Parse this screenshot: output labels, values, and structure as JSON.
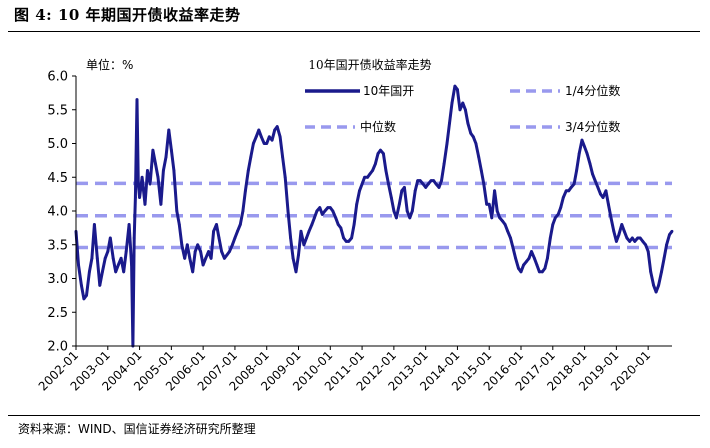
{
  "figure": {
    "label": "图 4:",
    "title": "10 年期国开债收益率走势",
    "source": "资料来源：WIND、国信证券经济研究所整理"
  },
  "chart_data": {
    "type": "line",
    "title": "10年国开债收益率走势",
    "unit_label": "单位：%",
    "ylim": [
      2.0,
      6.0
    ],
    "y_ticks": [
      "2.0",
      "2.5",
      "3.0",
      "3.5",
      "4.0",
      "4.5",
      "5.0",
      "5.5",
      "6.0"
    ],
    "x_ticks": [
      "2002-01",
      "2003-01",
      "2004-01",
      "2005-01",
      "2006-01",
      "2007-01",
      "2008-01",
      "2009-01",
      "2010-01",
      "2011-01",
      "2012-01",
      "2013-01",
      "2014-01",
      "2015-01",
      "2016-01",
      "2017-01",
      "2018-01",
      "2019-01",
      "2020-01"
    ],
    "x_range": [
      2002.0,
      2020.75
    ],
    "legend": {
      "series": "10年国开",
      "q1": "1/4分位数",
      "median": "中位数",
      "q3": "3/4分位数"
    },
    "reference_lines": {
      "q1": 3.46,
      "median": 3.93,
      "q3": 4.41
    },
    "colors": {
      "series": "#1a1a8c",
      "reference": "#9999ee"
    },
    "series": [
      {
        "name": "10年国开",
        "points": [
          [
            2002.0,
            3.7
          ],
          [
            2002.08,
            3.2
          ],
          [
            2002.17,
            2.9
          ],
          [
            2002.25,
            2.7
          ],
          [
            2002.33,
            2.75
          ],
          [
            2002.42,
            3.1
          ],
          [
            2002.5,
            3.3
          ],
          [
            2002.58,
            3.8
          ],
          [
            2002.67,
            3.3
          ],
          [
            2002.75,
            2.9
          ],
          [
            2002.83,
            3.1
          ],
          [
            2002.92,
            3.3
          ],
          [
            2003.0,
            3.4
          ],
          [
            2003.08,
            3.6
          ],
          [
            2003.17,
            3.3
          ],
          [
            2003.25,
            3.1
          ],
          [
            2003.33,
            3.2
          ],
          [
            2003.42,
            3.3
          ],
          [
            2003.5,
            3.1
          ],
          [
            2003.58,
            3.4
          ],
          [
            2003.67,
            3.8
          ],
          [
            2003.75,
            3.2
          ],
          [
            2003.79,
            2.0
          ],
          [
            2003.83,
            3.6
          ],
          [
            2003.87,
            4.2
          ],
          [
            2003.92,
            5.65
          ],
          [
            2003.96,
            4.4
          ],
          [
            2004.0,
            4.2
          ],
          [
            2004.08,
            4.5
          ],
          [
            2004.17,
            4.1
          ],
          [
            2004.25,
            4.6
          ],
          [
            2004.33,
            4.4
          ],
          [
            2004.42,
            4.9
          ],
          [
            2004.5,
            4.7
          ],
          [
            2004.58,
            4.5
          ],
          [
            2004.67,
            4.1
          ],
          [
            2004.75,
            4.6
          ],
          [
            2004.83,
            4.8
          ],
          [
            2004.92,
            5.2
          ],
          [
            2005.0,
            4.9
          ],
          [
            2005.08,
            4.6
          ],
          [
            2005.17,
            4.0
          ],
          [
            2005.25,
            3.8
          ],
          [
            2005.33,
            3.5
          ],
          [
            2005.42,
            3.3
          ],
          [
            2005.5,
            3.5
          ],
          [
            2005.58,
            3.3
          ],
          [
            2005.67,
            3.1
          ],
          [
            2005.75,
            3.4
          ],
          [
            2005.83,
            3.5
          ],
          [
            2005.92,
            3.4
          ],
          [
            2006.0,
            3.2
          ],
          [
            2006.08,
            3.3
          ],
          [
            2006.17,
            3.4
          ],
          [
            2006.25,
            3.3
          ],
          [
            2006.33,
            3.7
          ],
          [
            2006.42,
            3.8
          ],
          [
            2006.5,
            3.6
          ],
          [
            2006.58,
            3.4
          ],
          [
            2006.67,
            3.3
          ],
          [
            2006.75,
            3.35
          ],
          [
            2006.83,
            3.4
          ],
          [
            2006.92,
            3.5
          ],
          [
            2007.0,
            3.6
          ],
          [
            2007.08,
            3.7
          ],
          [
            2007.17,
            3.8
          ],
          [
            2007.25,
            4.0
          ],
          [
            2007.33,
            4.3
          ],
          [
            2007.42,
            4.6
          ],
          [
            2007.5,
            4.8
          ],
          [
            2007.58,
            5.0
          ],
          [
            2007.67,
            5.1
          ],
          [
            2007.75,
            5.2
          ],
          [
            2007.83,
            5.1
          ],
          [
            2007.92,
            5.0
          ],
          [
            2008.0,
            5.0
          ],
          [
            2008.08,
            5.1
          ],
          [
            2008.17,
            5.05
          ],
          [
            2008.25,
            5.2
          ],
          [
            2008.33,
            5.25
          ],
          [
            2008.42,
            5.1
          ],
          [
            2008.5,
            4.8
          ],
          [
            2008.58,
            4.5
          ],
          [
            2008.67,
            4.0
          ],
          [
            2008.75,
            3.6
          ],
          [
            2008.83,
            3.3
          ],
          [
            2008.92,
            3.1
          ],
          [
            2009.0,
            3.35
          ],
          [
            2009.08,
            3.7
          ],
          [
            2009.17,
            3.5
          ],
          [
            2009.25,
            3.6
          ],
          [
            2009.33,
            3.7
          ],
          [
            2009.42,
            3.8
          ],
          [
            2009.5,
            3.9
          ],
          [
            2009.58,
            4.0
          ],
          [
            2009.67,
            4.05
          ],
          [
            2009.75,
            3.95
          ],
          [
            2009.83,
            4.0
          ],
          [
            2009.92,
            4.05
          ],
          [
            2010.0,
            4.05
          ],
          [
            2010.08,
            4.0
          ],
          [
            2010.17,
            3.9
          ],
          [
            2010.25,
            3.8
          ],
          [
            2010.33,
            3.75
          ],
          [
            2010.42,
            3.6
          ],
          [
            2010.5,
            3.55
          ],
          [
            2010.58,
            3.55
          ],
          [
            2010.67,
            3.6
          ],
          [
            2010.75,
            3.8
          ],
          [
            2010.83,
            4.1
          ],
          [
            2010.92,
            4.3
          ],
          [
            2011.0,
            4.4
          ],
          [
            2011.08,
            4.5
          ],
          [
            2011.17,
            4.5
          ],
          [
            2011.25,
            4.55
          ],
          [
            2011.33,
            4.6
          ],
          [
            2011.42,
            4.7
          ],
          [
            2011.5,
            4.85
          ],
          [
            2011.58,
            4.9
          ],
          [
            2011.67,
            4.85
          ],
          [
            2011.75,
            4.6
          ],
          [
            2011.83,
            4.4
          ],
          [
            2011.92,
            4.2
          ],
          [
            2012.0,
            4.0
          ],
          [
            2012.08,
            3.9
          ],
          [
            2012.17,
            4.1
          ],
          [
            2012.25,
            4.3
          ],
          [
            2012.33,
            4.35
          ],
          [
            2012.42,
            4.0
          ],
          [
            2012.5,
            3.9
          ],
          [
            2012.58,
            4.0
          ],
          [
            2012.67,
            4.3
          ],
          [
            2012.75,
            4.45
          ],
          [
            2012.83,
            4.45
          ],
          [
            2012.92,
            4.4
          ],
          [
            2013.0,
            4.35
          ],
          [
            2013.08,
            4.4
          ],
          [
            2013.17,
            4.45
          ],
          [
            2013.25,
            4.45
          ],
          [
            2013.33,
            4.4
          ],
          [
            2013.42,
            4.35
          ],
          [
            2013.5,
            4.45
          ],
          [
            2013.58,
            4.7
          ],
          [
            2013.67,
            5.0
          ],
          [
            2013.75,
            5.3
          ],
          [
            2013.83,
            5.6
          ],
          [
            2013.92,
            5.85
          ],
          [
            2014.0,
            5.8
          ],
          [
            2014.08,
            5.5
          ],
          [
            2014.17,
            5.6
          ],
          [
            2014.25,
            5.5
          ],
          [
            2014.33,
            5.3
          ],
          [
            2014.42,
            5.15
          ],
          [
            2014.5,
            5.1
          ],
          [
            2014.58,
            5.0
          ],
          [
            2014.67,
            4.8
          ],
          [
            2014.75,
            4.6
          ],
          [
            2014.83,
            4.4
          ],
          [
            2014.92,
            4.1
          ],
          [
            2015.0,
            4.1
          ],
          [
            2015.08,
            3.9
          ],
          [
            2015.17,
            4.3
          ],
          [
            2015.25,
            4.0
          ],
          [
            2015.33,
            3.9
          ],
          [
            2015.42,
            3.85
          ],
          [
            2015.5,
            3.8
          ],
          [
            2015.58,
            3.7
          ],
          [
            2015.67,
            3.6
          ],
          [
            2015.75,
            3.45
          ],
          [
            2015.83,
            3.3
          ],
          [
            2015.92,
            3.15
          ],
          [
            2016.0,
            3.1
          ],
          [
            2016.08,
            3.2
          ],
          [
            2016.17,
            3.25
          ],
          [
            2016.25,
            3.3
          ],
          [
            2016.33,
            3.4
          ],
          [
            2016.42,
            3.3
          ],
          [
            2016.5,
            3.2
          ],
          [
            2016.58,
            3.1
          ],
          [
            2016.67,
            3.1
          ],
          [
            2016.75,
            3.15
          ],
          [
            2016.83,
            3.3
          ],
          [
            2016.92,
            3.6
          ],
          [
            2017.0,
            3.8
          ],
          [
            2017.08,
            3.9
          ],
          [
            2017.17,
            3.95
          ],
          [
            2017.25,
            4.05
          ],
          [
            2017.33,
            4.2
          ],
          [
            2017.42,
            4.3
          ],
          [
            2017.5,
            4.3
          ],
          [
            2017.58,
            4.35
          ],
          [
            2017.67,
            4.4
          ],
          [
            2017.75,
            4.6
          ],
          [
            2017.83,
            4.85
          ],
          [
            2017.92,
            5.05
          ],
          [
            2018.0,
            4.95
          ],
          [
            2018.08,
            4.85
          ],
          [
            2018.17,
            4.7
          ],
          [
            2018.25,
            4.55
          ],
          [
            2018.33,
            4.45
          ],
          [
            2018.42,
            4.35
          ],
          [
            2018.5,
            4.25
          ],
          [
            2018.58,
            4.2
          ],
          [
            2018.67,
            4.3
          ],
          [
            2018.75,
            4.1
          ],
          [
            2018.83,
            3.9
          ],
          [
            2018.92,
            3.7
          ],
          [
            2019.0,
            3.55
          ],
          [
            2019.08,
            3.65
          ],
          [
            2019.17,
            3.8
          ],
          [
            2019.25,
            3.7
          ],
          [
            2019.33,
            3.6
          ],
          [
            2019.42,
            3.55
          ],
          [
            2019.5,
            3.6
          ],
          [
            2019.58,
            3.55
          ],
          [
            2019.67,
            3.6
          ],
          [
            2019.75,
            3.6
          ],
          [
            2019.83,
            3.55
          ],
          [
            2019.92,
            3.5
          ],
          [
            2020.0,
            3.4
          ],
          [
            2020.08,
            3.1
          ],
          [
            2020.17,
            2.9
          ],
          [
            2020.25,
            2.8
          ],
          [
            2020.33,
            2.9
          ],
          [
            2020.42,
            3.1
          ],
          [
            2020.5,
            3.3
          ],
          [
            2020.58,
            3.5
          ],
          [
            2020.67,
            3.65
          ],
          [
            2020.75,
            3.7
          ]
        ]
      }
    ]
  }
}
